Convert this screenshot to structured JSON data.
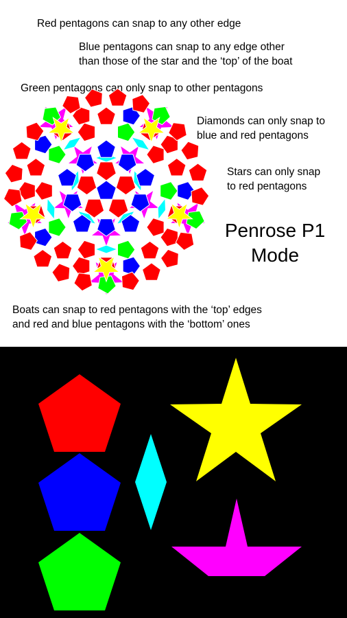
{
  "colors": {
    "red": "#ff0000",
    "blue": "#0000ff",
    "green": "#00ff00",
    "cyan": "#00ffff",
    "yellow": "#ffff00",
    "magenta": "#ff00ff",
    "tile_stroke": "#ffffff"
  },
  "notes": {
    "red": "Red pentagons  can snap to any other edge",
    "blue_line1": "Blue pentagons can snap to any edge other",
    "blue_line2": "than those of the star and the ‘top’ of the boat",
    "green": "Green pentagons can only snap to other pentagons",
    "diamond_line1": "Diamonds can only snap to",
    "diamond_line2": "blue and red pentagons",
    "star_line1": "Stars can only snap",
    "star_line2": "to red pentagons",
    "boat_line1": "Boats can snap to red pentagons with the ‘top’ edges",
    "boat_line2": "and red and blue pentagons with the ‘bottom’ ones"
  },
  "mode_title": {
    "line1": "Penrose P1",
    "line2": "Mode"
  },
  "legend_shapes": [
    "red-pentagon",
    "blue-pentagon",
    "green-pentagon",
    "cyan-diamond",
    "yellow-star",
    "magenta-boat"
  ]
}
